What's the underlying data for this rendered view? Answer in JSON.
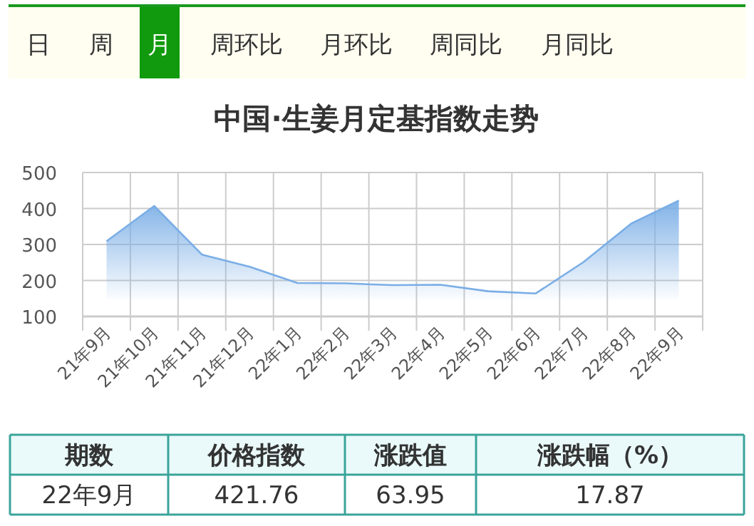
{
  "chart_data": [
    {
      "type": "other",
      "annotations": [
        "日",
        "周",
        "月",
        "周环比",
        "月环比",
        "周同比",
        "月同比"
      ]
    },
    {
      "type": "area",
      "title": "中国·生姜月定基指数走势",
      "categories": [
        "21年9月",
        "21年10月",
        "21年11月",
        "21年12月",
        "22年1月",
        "22年2月",
        "22年3月",
        "22年4月",
        "22年5月",
        "22年6月",
        "22年7月",
        "22年8月",
        "22年9月"
      ],
      "values": [
        309,
        407,
        272,
        238,
        193,
        192,
        187,
        188,
        170,
        164,
        251,
        358,
        422
      ],
      "color": "#7aaee6",
      "ylim": [
        100,
        500
      ],
      "yticks": [
        100,
        200,
        300,
        400,
        500
      ],
      "grid": true
    },
    {
      "type": "other",
      "annotations": [
        "期数",
        "价格指数",
        "涨跌值",
        "涨跌幅（%）",
        "22年9月",
        "421.76",
        "63.95",
        "17.87"
      ]
    }
  ]
}
